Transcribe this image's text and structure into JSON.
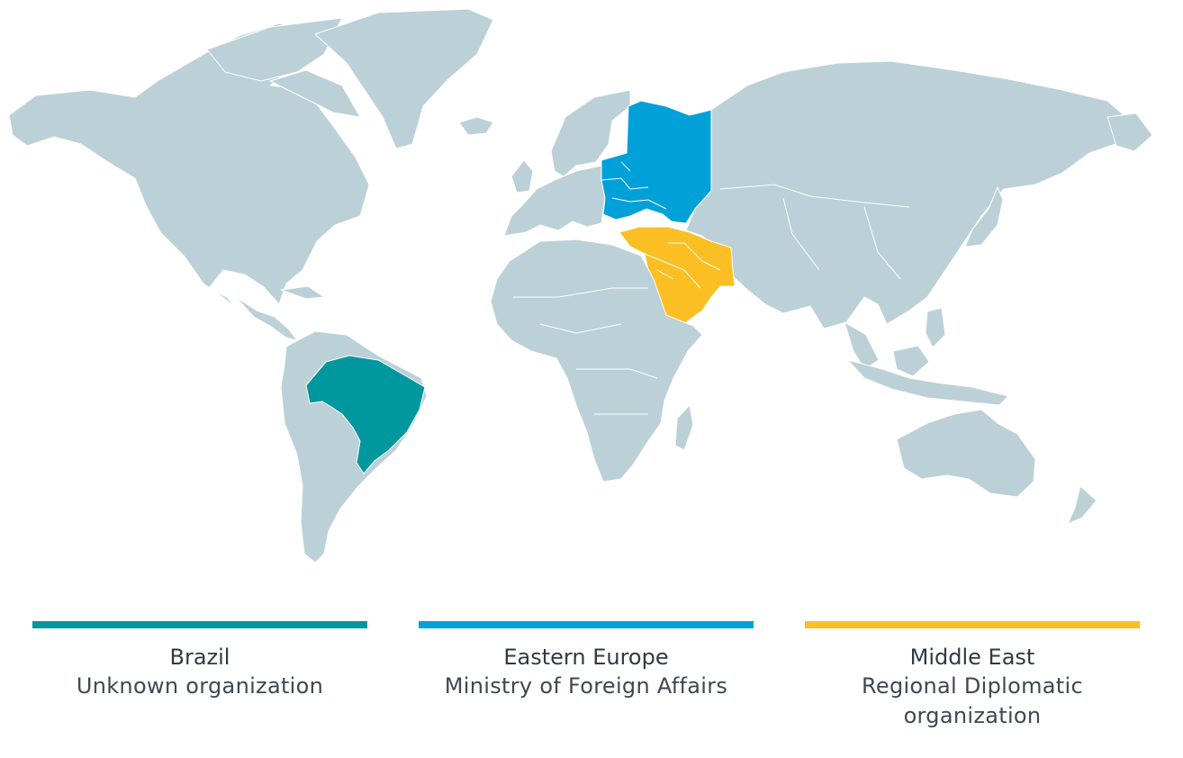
{
  "colors": {
    "land": "#bcd0d7",
    "brazil": "#00979f",
    "eastern_europe": "#00a0d8",
    "middle_east": "#fbbf24"
  },
  "legend": [
    {
      "region": "Brazil",
      "organization": "Unknown organization",
      "color": "#00979f"
    },
    {
      "region": "Eastern Europe",
      "organization": "Ministry of Foreign Affairs",
      "color": "#00a0d8"
    },
    {
      "region": "Middle East",
      "organization": "Regional Diplomatic organization",
      "color": "#fbbf24"
    }
  ]
}
